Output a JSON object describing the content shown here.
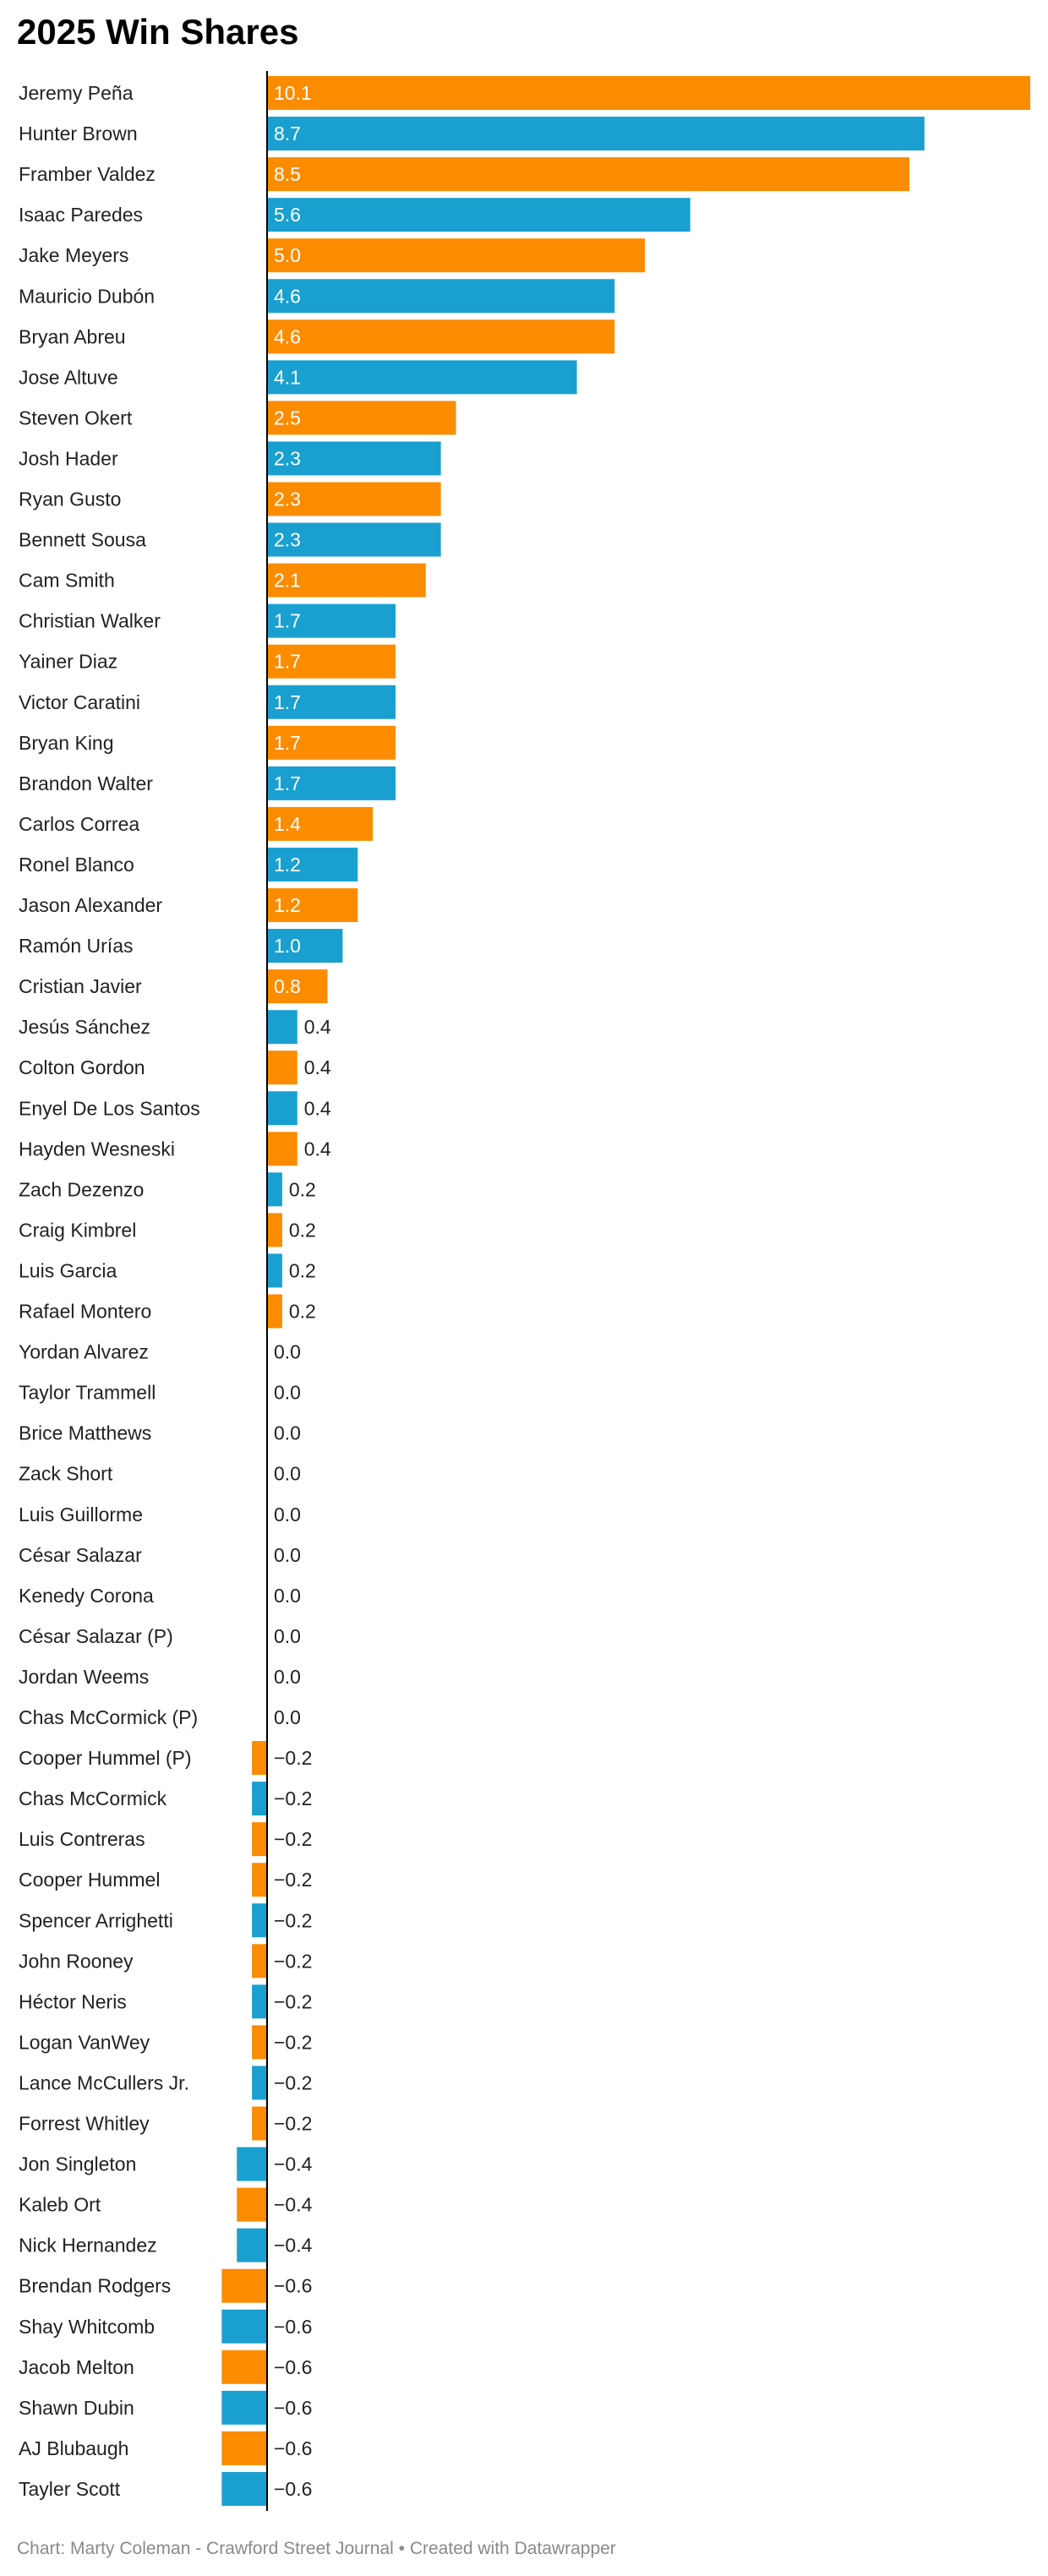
{
  "header": {
    "title": "2025 Win Shares"
  },
  "footer": {
    "credit": "Chart: Marty Coleman - Crawford Street Journal • Created with Datawrapper"
  },
  "colors": {
    "orange": "#fb8c00",
    "blue": "#19a0d0",
    "axis": "#000000"
  },
  "chart_data": {
    "type": "bar",
    "orientation": "horizontal",
    "title": "2025 Win Shares",
    "xlabel": "",
    "ylabel": "",
    "xlim": [
      -0.6,
      10.1
    ],
    "grid": false,
    "legend": "none",
    "categories": [
      "Jeremy Peña",
      "Hunter Brown",
      "Framber Valdez",
      "Isaac Paredes",
      "Jake Meyers",
      "Mauricio Dubón",
      "Bryan Abreu",
      "Jose Altuve",
      "Steven Okert",
      "Josh Hader",
      "Ryan Gusto",
      "Bennett Sousa",
      "Cam Smith",
      "Christian Walker",
      "Yainer Diaz",
      "Victor Caratini",
      "Bryan King",
      "Brandon Walter",
      "Carlos Correa",
      "Ronel Blanco",
      "Jason Alexander",
      "Ramón Urías",
      "Cristian Javier",
      "Jesús Sánchez",
      "Colton Gordon",
      "Enyel De Los Santos",
      "Hayden Wesneski",
      "Zach Dezenzo",
      "Craig Kimbrel",
      "Luis Garcia",
      "Rafael Montero",
      "Yordan Alvarez",
      "Taylor Trammell",
      "Brice Matthews",
      "Zack Short",
      "Luis Guillorme",
      "César Salazar",
      "Kenedy Corona",
      "César Salazar (P)",
      "Jordan Weems",
      "Chas McCormick (P)",
      "Cooper Hummel (P)",
      "Chas McCormick",
      "Luis Contreras",
      "Cooper Hummel",
      "Spencer Arrighetti",
      "John Rooney",
      "Héctor Neris",
      "Logan VanWey",
      "Lance McCullers Jr.",
      "Forrest Whitley",
      "Jon Singleton",
      "Kaleb Ort",
      "Nick Hernandez",
      "Brendan Rodgers",
      "Shay Whitcomb",
      "Jacob Melton",
      "Shawn Dubin",
      "AJ Blubaugh",
      "Tayler Scott"
    ],
    "values": [
      10.1,
      8.7,
      8.5,
      5.6,
      5.0,
      4.6,
      4.6,
      4.1,
      2.5,
      2.3,
      2.3,
      2.3,
      2.1,
      1.7,
      1.7,
      1.7,
      1.7,
      1.7,
      1.4,
      1.2,
      1.2,
      1.0,
      0.8,
      0.4,
      0.4,
      0.4,
      0.4,
      0.2,
      0.2,
      0.2,
      0.2,
      0.0,
      0.0,
      0.0,
      0.0,
      0.0,
      0.0,
      0.0,
      0.0,
      0.0,
      0.0,
      -0.2,
      -0.2,
      -0.2,
      -0.2,
      -0.2,
      -0.2,
      -0.2,
      -0.2,
      -0.2,
      -0.2,
      -0.4,
      -0.4,
      -0.4,
      -0.6,
      -0.6,
      -0.6,
      -0.6,
      -0.6,
      -0.6
    ],
    "labels": [
      "10.1",
      "8.7",
      "8.5",
      "5.6",
      "5.0",
      "4.6",
      "4.6",
      "4.1",
      "2.5",
      "2.3",
      "2.3",
      "2.3",
      "2.1",
      "1.7",
      "1.7",
      "1.7",
      "1.7",
      "1.7",
      "1.4",
      "1.2",
      "1.2",
      "1.0",
      "0.8",
      "0.4",
      "0.4",
      "0.4",
      "0.4",
      "0.2",
      "0.2",
      "0.2",
      "0.2",
      "0.0",
      "0.0",
      "0.0",
      "0.0",
      "0.0",
      "0.0",
      "0.0",
      "0.0",
      "0.0",
      "0.0",
      "−0.2",
      "−0.2",
      "−0.2",
      "−0.2",
      "−0.2",
      "−0.2",
      "−0.2",
      "−0.2",
      "−0.2",
      "−0.2",
      "−0.4",
      "−0.4",
      "−0.4",
      "−0.6",
      "−0.6",
      "−0.6",
      "−0.6",
      "−0.6",
      "−0.6"
    ],
    "bar_colors": [
      "orange",
      "blue",
      "orange",
      "blue",
      "orange",
      "blue",
      "orange",
      "blue",
      "orange",
      "blue",
      "orange",
      "blue",
      "orange",
      "blue",
      "orange",
      "blue",
      "orange",
      "blue",
      "orange",
      "blue",
      "orange",
      "blue",
      "orange",
      "blue",
      "orange",
      "blue",
      "orange",
      "blue",
      "orange",
      "blue",
      "orange",
      "blue",
      "orange",
      "blue",
      "orange",
      "blue",
      "orange",
      "blue",
      "orange",
      "blue",
      "orange",
      "orange",
      "blue",
      "orange",
      "orange",
      "blue",
      "orange",
      "blue",
      "orange",
      "blue",
      "orange",
      "blue",
      "orange",
      "blue",
      "orange",
      "blue",
      "orange",
      "blue",
      "orange",
      "blue"
    ]
  }
}
